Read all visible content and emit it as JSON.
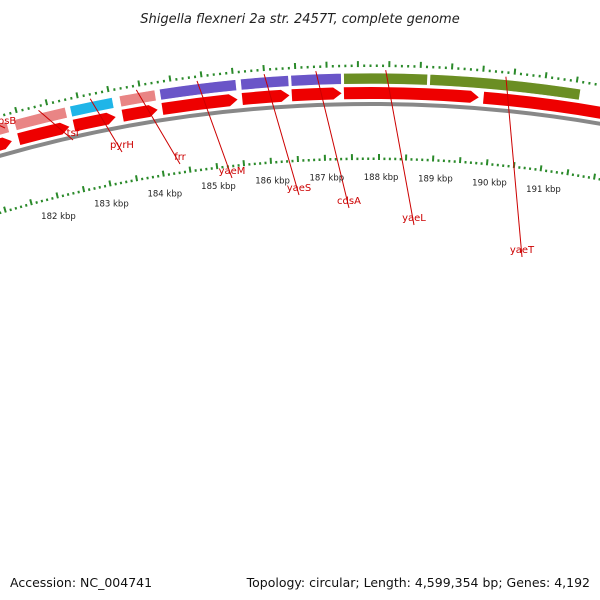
{
  "title": "Shigella flexneri 2a str. 2457T, complete genome",
  "footer": {
    "accession": "Accession: NC_004741",
    "summary": "Topology: circular; Length: 4,599,354 bp; Genes: 4,192"
  },
  "colors": {
    "backbone": "#888888",
    "cds_arrow": "#ee0000",
    "tick": "#2a8a2a",
    "label": "#cc0000",
    "rpsB": "#e98585",
    "tsf": "#e98585",
    "pyrH": "#1fb5e8",
    "frr": "#e98585",
    "yaeM": "#6a55c8",
    "yaeS": "#6a55c8",
    "cdsA": "#6a55c8",
    "yaeL": "#6b8e23",
    "yaeT": "#6b8e23"
  },
  "genes": [
    "rpsB",
    "tsf",
    "pyrH",
    "frr",
    "yaeM",
    "yaeS",
    "cdsA",
    "yaeL",
    "yaeT"
  ],
  "kbp_labels": [
    "182 kbp",
    "183 kbp",
    "184 kbp",
    "185 kbp",
    "186 kbp",
    "187 kbp",
    "188 kbp",
    "189 kbp",
    "190 kbp",
    "191 kbp"
  ]
}
